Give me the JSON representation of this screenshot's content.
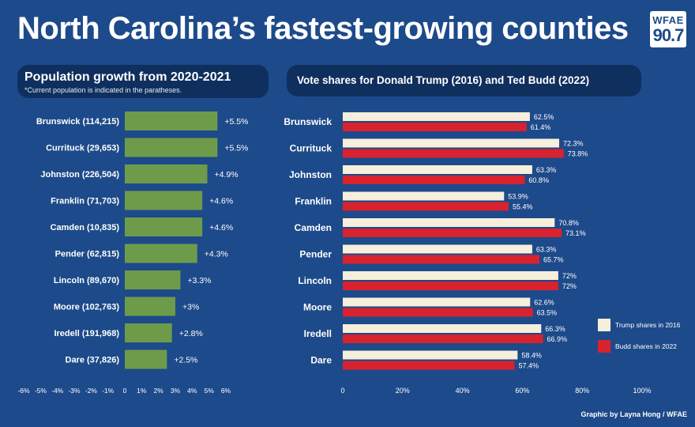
{
  "title": "North Carolina’s fastest-growing counties",
  "logo": {
    "line1": "WFAE",
    "line2": "90.7"
  },
  "credit": "Graphic by Layna Hong / WFAE",
  "colors": {
    "background": "#1d4a8a",
    "panel": "#0f2f5e",
    "growth_bar": "#6e9b4a",
    "trump_bar": "#f5efdc",
    "budd_bar": "#d8222e"
  },
  "chart_data": [
    {
      "type": "bar",
      "orientation": "horizontal",
      "title": "Population growth from 2020-2021",
      "subtitle": "*Current population is indicated in the paratheses.",
      "categories": [
        "Brunswick (114,215)",
        "Currituck (29,653)",
        "Johnston (226,504)",
        "Franklin (71,703)",
        "Camden (10,835)",
        "Pender (62,815)",
        "Lincoln  (89,670)",
        "Moore (102,763)",
        "Iredell (191,968)",
        "Dare (37,826)"
      ],
      "values": [
        5.5,
        5.5,
        4.9,
        4.6,
        4.6,
        4.3,
        3.3,
        3.0,
        2.8,
        2.5
      ],
      "value_labels": [
        "+5.5%",
        "+5.5%",
        "+4.9%",
        "+4.6%",
        "+4.6%",
        "+4.3%",
        "+3.3%",
        "+3%",
        "+2.8%",
        "+2.5%"
      ],
      "xlim": [
        -6,
        6
      ],
      "x_ticks": [
        "-6%",
        "-5%",
        "-4%",
        "-3%",
        "-2%",
        "-1%",
        "0",
        "1%",
        "2%",
        "3%",
        "4%",
        "5%",
        "6%"
      ]
    },
    {
      "type": "bar",
      "orientation": "horizontal",
      "title": "Vote shares for Donald Trump (2016) and Ted Budd (2022)",
      "categories": [
        "Brunswick",
        "Currituck",
        "Johnston",
        "Franklin",
        "Camden",
        "Pender",
        "Lincoln",
        "Moore",
        "Iredell",
        "Dare"
      ],
      "series": [
        {
          "name": "Trump shares in 2016",
          "values": [
            62.5,
            72.3,
            63.3,
            53.9,
            70.8,
            63.3,
            72,
            62.6,
            66.3,
            58.4
          ],
          "value_labels": [
            "62.5%",
            "72.3%",
            "63.3%",
            "53.9%",
            "70.8%",
            "63.3%",
            "72%",
            "62.6%",
            "66.3%",
            "58.4%"
          ]
        },
        {
          "name": "Budd shares in 2022",
          "values": [
            61.4,
            73.8,
            60.8,
            55.4,
            73.1,
            65.7,
            72,
            63.5,
            66.9,
            57.4
          ],
          "value_labels": [
            "61.4%",
            "73.8%",
            "60.8%",
            "55.4%",
            "73.1%",
            "65.7%",
            "72%",
            "63.5%",
            "66.9%",
            "57.4%"
          ]
        }
      ],
      "xlim": [
        0,
        100
      ],
      "x_ticks": [
        "0",
        "20%",
        "40%",
        "60%",
        "80%",
        "100%"
      ],
      "legend": "right"
    }
  ]
}
